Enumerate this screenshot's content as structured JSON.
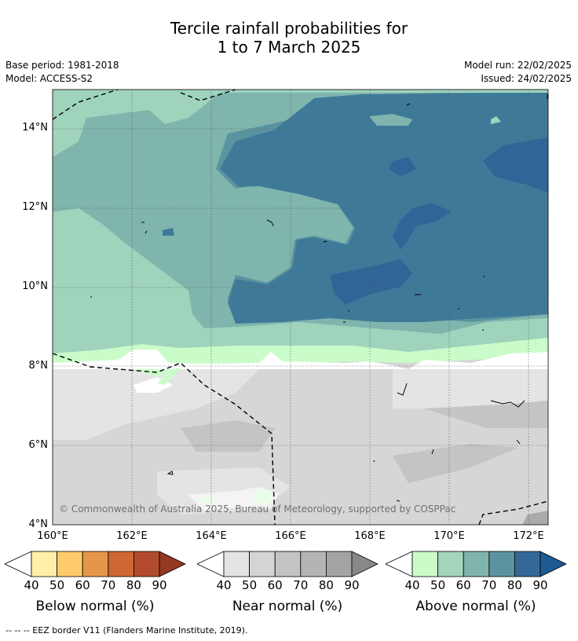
{
  "title_line1": "Tercile rainfall probabilities for",
  "title_line2": "1 to 7 March 2025",
  "meta": {
    "base_period": "Base period: 1981-2018",
    "model": "Model: ACCESS-S2",
    "model_run": "Model run: 22/02/2025",
    "issued": "Issued: 24/02/2025"
  },
  "map": {
    "lat_labels": [
      "14°N",
      "12°N",
      "10°N",
      "8°N",
      "6°N",
      "4°N"
    ],
    "lon_labels": [
      "160°E",
      "162°E",
      "164°E",
      "166°E",
      "168°E",
      "170°E",
      "172°E"
    ],
    "credit": "© Commonwealth of Australia 2025, Bureau of Meteorology, supported by COSPPac",
    "colors": {
      "above_40": "#c9fcc9",
      "above_50": "#9fd3bc",
      "above_60": "#7fb5ad",
      "above_70": "#5a93a0",
      "above_80": "#3e7a98",
      "above_90": "#2f6697",
      "near_light": "#e4e4e4",
      "near_mid": "#d6d6d6",
      "near_dark": "#c4c4c4",
      "near_darker": "#aaaaaa"
    }
  },
  "legends": [
    {
      "label": "Below normal (%)",
      "ticks": [
        "40",
        "50",
        "60",
        "70",
        "80",
        "90"
      ],
      "colors": [
        "#fff0a8",
        "#fecb6a",
        "#e6964a",
        "#d06535",
        "#b24b2c",
        "#943922"
      ]
    },
    {
      "label": "Near normal (%)",
      "ticks": [
        "40",
        "50",
        "60",
        "70",
        "80",
        "90"
      ],
      "colors": [
        "#e4e4e4",
        "#d4d4d4",
        "#c4c4c4",
        "#b4b4b4",
        "#a4a4a4",
        "#888888"
      ]
    },
    {
      "label": "Above normal (%)",
      "ticks": [
        "40",
        "50",
        "60",
        "70",
        "80",
        "90"
      ],
      "colors": [
        "#c9fcc9",
        "#a3d4bc",
        "#80b5ac",
        "#5b93a1",
        "#336898",
        "#1e5a93"
      ]
    }
  ],
  "footer": "--  --  -- EEZ border V11 (Flanders Marine Institute, 2019)."
}
